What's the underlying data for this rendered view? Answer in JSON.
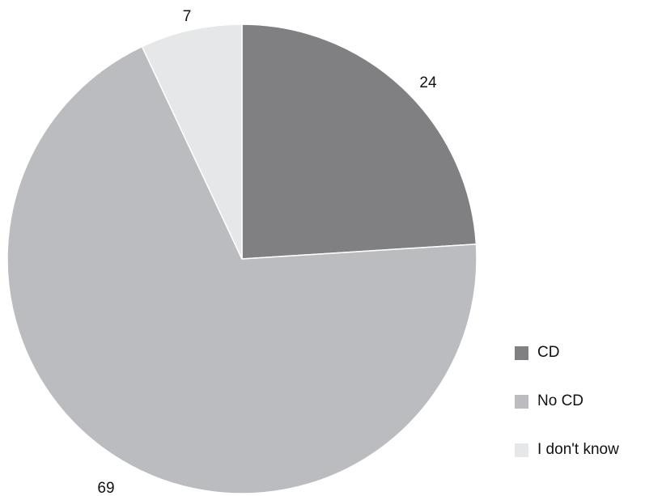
{
  "chart_data": {
    "type": "pie",
    "title": "",
    "slices": [
      {
        "label": "CD",
        "value": 24,
        "color": "#808083"
      },
      {
        "label": "No CD",
        "value": 69,
        "color": "#bbbcbf"
      },
      {
        "label": "I don't know",
        "value": 7,
        "color": "#e6e7e8"
      }
    ],
    "data_labels": [
      "24",
      "69",
      "7"
    ],
    "start_angle_deg": 0,
    "direction": "clockwise",
    "legend": {
      "position": "right-bottom",
      "items": [
        "CD",
        "No CD",
        "I don't know"
      ]
    }
  }
}
